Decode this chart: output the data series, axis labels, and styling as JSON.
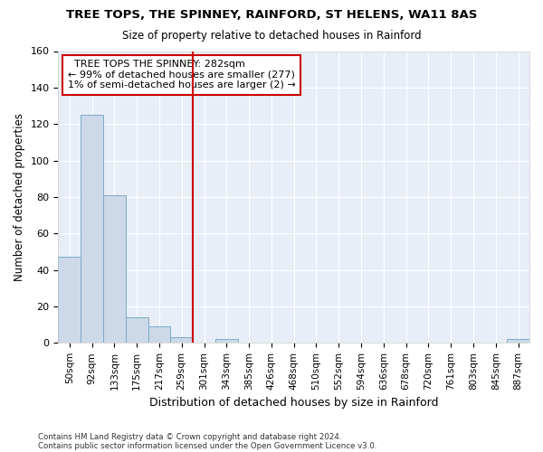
{
  "title": "TREE TOPS, THE SPINNEY, RAINFORD, ST HELENS, WA11 8AS",
  "subtitle": "Size of property relative to detached houses in Rainford",
  "xlabel": "Distribution of detached houses by size in Rainford",
  "ylabel": "Number of detached properties",
  "bar_color": "#cdd9e8",
  "bar_edge_color": "#7aaac8",
  "background_color": "#e8eef8",
  "grid_color": "#ffffff",
  "fig_background": "#ffffff",
  "categories": [
    "50sqm",
    "92sqm",
    "133sqm",
    "175sqm",
    "217sqm",
    "259sqm",
    "301sqm",
    "343sqm",
    "385sqm",
    "426sqm",
    "468sqm",
    "510sqm",
    "552sqm",
    "594sqm",
    "636sqm",
    "678sqm",
    "720sqm",
    "761sqm",
    "803sqm",
    "845sqm",
    "887sqm"
  ],
  "values": [
    47,
    125,
    81,
    14,
    9,
    3,
    0,
    2,
    0,
    0,
    0,
    0,
    0,
    0,
    0,
    0,
    0,
    0,
    0,
    0,
    2
  ],
  "ylim": [
    0,
    160
  ],
  "yticks": [
    0,
    20,
    40,
    60,
    80,
    100,
    120,
    140,
    160
  ],
  "vline_x_index": 6,
  "vline_color": "#cc0000",
  "annotation_text": "  TREE TOPS THE SPINNEY: 282sqm  \n← 99% of detached houses are smaller (277)\n1% of semi-detached houses are larger (2) →",
  "annotation_box_color": "#ffffff",
  "annotation_box_edge": "#cc0000",
  "footer_line1": "Contains HM Land Registry data © Crown copyright and database right 2024.",
  "footer_line2": "Contains public sector information licensed under the Open Government Licence v3.0."
}
